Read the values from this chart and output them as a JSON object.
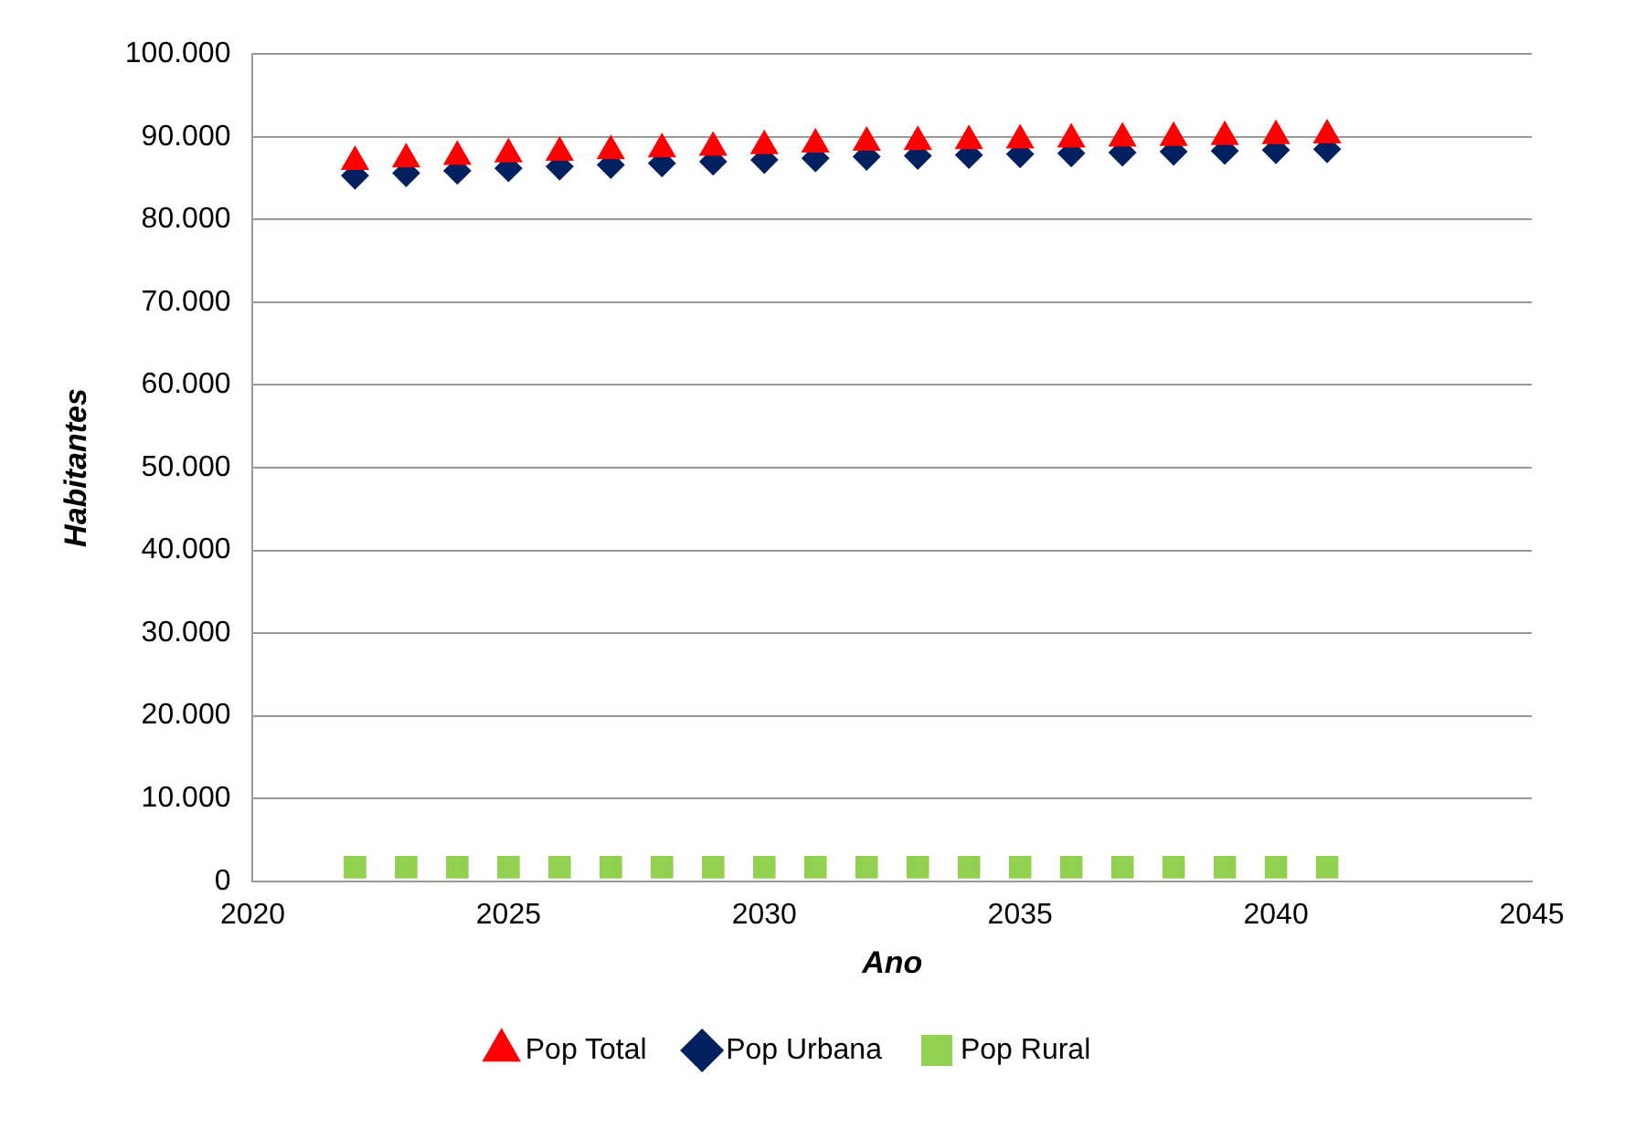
{
  "chart_data": {
    "type": "scatter",
    "xlabel": "Ano",
    "ylabel": "Habitantes",
    "x": [
      2022,
      2023,
      2024,
      2025,
      2026,
      2027,
      2028,
      2029,
      2030,
      2031,
      2032,
      2033,
      2034,
      2035,
      2036,
      2037,
      2038,
      2039,
      2040,
      2041
    ],
    "series": [
      {
        "name": "Pop Total",
        "color": "#ff0000",
        "marker": "triangle",
        "values": [
          87000,
          87300,
          87600,
          87900,
          88100,
          88300,
          88500,
          88700,
          88900,
          89100,
          89300,
          89400,
          89500,
          89600,
          89700,
          89800,
          89900,
          90000,
          90100,
          90200
        ]
      },
      {
        "name": "Pop Urbana",
        "color": "#002060",
        "marker": "diamond",
        "values": [
          85300,
          85600,
          85900,
          86200,
          86400,
          86600,
          86800,
          87000,
          87200,
          87400,
          87600,
          87700,
          87800,
          87900,
          88000,
          88100,
          88200,
          88300,
          88400,
          88500
        ]
      },
      {
        "name": "Pop Rural",
        "color": "#92d050",
        "marker": "square",
        "values": [
          1700,
          1700,
          1700,
          1700,
          1700,
          1700,
          1700,
          1700,
          1700,
          1700,
          1700,
          1700,
          1700,
          1700,
          1700,
          1700,
          1700,
          1700,
          1700,
          1700
        ]
      }
    ],
    "xlim": [
      2020,
      2045
    ],
    "xticks": [
      2020,
      2025,
      2030,
      2035,
      2040,
      2045
    ],
    "ylim": [
      0,
      100000
    ],
    "yticks": [
      0,
      {
        "value": 10000,
        "label": "10.000"
      },
      {
        "value": 20000,
        "label": "20.000"
      },
      {
        "value": 30000,
        "label": "30.000"
      },
      {
        "value": 40000,
        "label": "40.000"
      },
      {
        "value": 50000,
        "label": "50.000"
      },
      {
        "value": 60000,
        "label": "60.000"
      },
      {
        "value": 70000,
        "label": "70.000"
      },
      {
        "value": 80000,
        "label": "80.000"
      },
      {
        "value": 90000,
        "label": "90.000"
      },
      {
        "value": 100000,
        "label": "100.000"
      }
    ],
    "grid": "y",
    "legend": "bottom"
  }
}
